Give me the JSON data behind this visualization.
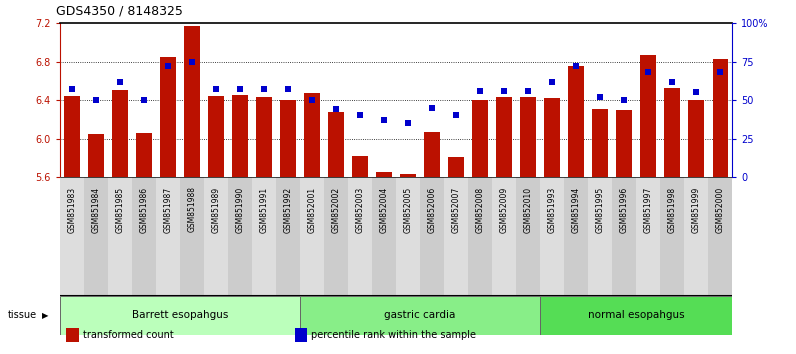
{
  "title": "GDS4350 / 8148325",
  "samples": [
    "GSM851983",
    "GSM851984",
    "GSM851985",
    "GSM851986",
    "GSM851987",
    "GSM851988",
    "GSM851989",
    "GSM851990",
    "GSM851991",
    "GSM851992",
    "GSM852001",
    "GSM852002",
    "GSM852003",
    "GSM852004",
    "GSM852005",
    "GSM852006",
    "GSM852007",
    "GSM852008",
    "GSM852009",
    "GSM852010",
    "GSM851993",
    "GSM851994",
    "GSM851995",
    "GSM851996",
    "GSM851997",
    "GSM851998",
    "GSM851999",
    "GSM852000"
  ],
  "bar_values": [
    6.44,
    6.05,
    6.5,
    6.06,
    6.85,
    7.17,
    6.44,
    6.45,
    6.43,
    6.4,
    6.47,
    6.28,
    5.82,
    5.65,
    5.63,
    6.07,
    5.81,
    6.4,
    6.43,
    6.43,
    6.42,
    6.75,
    6.31,
    6.3,
    6.87,
    6.52,
    6.4,
    6.83
  ],
  "dot_values": [
    57,
    50,
    62,
    50,
    72,
    75,
    57,
    57,
    57,
    57,
    50,
    44,
    40,
    37,
    35,
    45,
    40,
    56,
    56,
    56,
    62,
    72,
    52,
    50,
    68,
    62,
    55,
    68
  ],
  "groups": [
    {
      "label": "Barrett esopahgus",
      "start": 0,
      "end": 9,
      "color": "#bbffbb"
    },
    {
      "label": "gastric cardia",
      "start": 10,
      "end": 19,
      "color": "#88ee88"
    },
    {
      "label": "normal esopahgus",
      "start": 20,
      "end": 27,
      "color": "#55dd55"
    }
  ],
  "bar_color": "#bb1100",
  "dot_color": "#0000cc",
  "ylim_left": [
    5.6,
    7.2
  ],
  "ylim_right": [
    0,
    100
  ],
  "yticks_left": [
    5.6,
    6.0,
    6.4,
    6.8,
    7.2
  ],
  "yticks_right": [
    0,
    25,
    50,
    75,
    100
  ],
  "ytick_labels_right": [
    "0",
    "25",
    "50",
    "75",
    "100%"
  ],
  "grid_values": [
    6.0,
    6.4,
    6.8
  ],
  "legend_items": [
    {
      "label": "transformed count",
      "color": "#bb1100"
    },
    {
      "label": "percentile rank within the sample",
      "color": "#0000cc"
    }
  ],
  "tissue_label": "tissue ▶",
  "tick_bg_even": "#dddddd",
  "tick_bg_odd": "#cccccc",
  "background_color": "#ffffff"
}
